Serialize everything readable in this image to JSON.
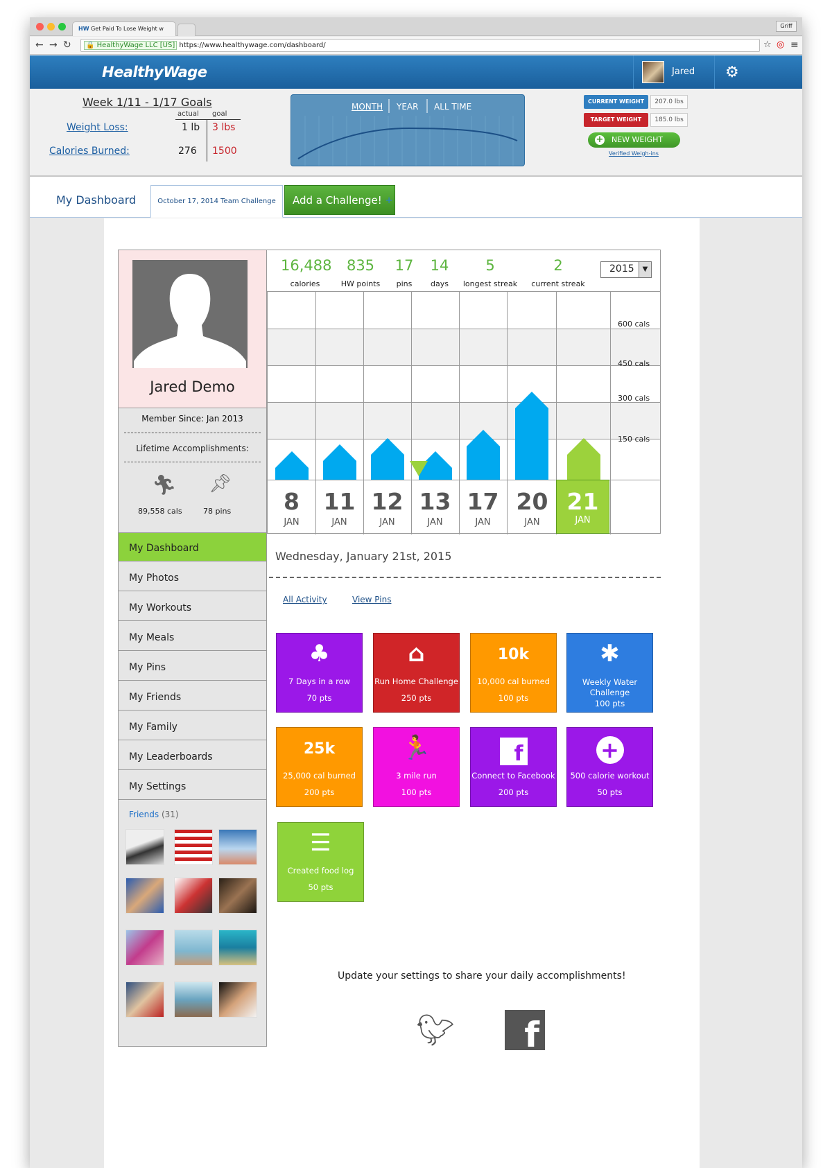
{
  "browser": {
    "tab_title": "Get Paid To Lose Weight w",
    "profile_button": "Griff",
    "ssl_label": "HealthyWage LLC [US]",
    "url": "https://www.healthywage.com/dashboard/"
  },
  "header": {
    "logo": "HealthyWage",
    "username": "Jared"
  },
  "goals": {
    "week_title": "Week 1/11 - 1/17 Goals",
    "col_actual": "actual",
    "col_goal": "goal",
    "rows": [
      {
        "label": "Weight Loss:",
        "actual": "1 lb",
        "goal": "3 lbs"
      },
      {
        "label": "Calories Burned:",
        "actual": "276",
        "goal": "1500"
      }
    ],
    "chart_tabs": [
      "MONTH",
      "YEAR",
      "ALL TIME"
    ],
    "current_weight_label": "CURRENT WEIGHT",
    "current_weight_value": "207.0 lbs",
    "target_weight_label": "TARGET WEIGHT",
    "target_weight_value": "185.0 lbs",
    "new_weight_button": "NEW WEIGHT",
    "verified_link": "Verified Weigh-ins"
  },
  "tabs": {
    "my_dashboard": "My Dashboard",
    "team_challenge": "October 17, 2014 Team Challenge",
    "add_challenge": "Add a Challenge!",
    "add_plus": "+"
  },
  "profile": {
    "name": "Jared Demo",
    "member_since_label": "Member Since:",
    "member_since_value": "Jan 2013",
    "lifetime_label": "Lifetime Accomplishments:",
    "lifetime_cals": "89,558 cals",
    "lifetime_pins": "78 pins"
  },
  "sidebar": {
    "items": [
      {
        "label": "My Dashboard",
        "active": true
      },
      {
        "label": "My Photos"
      },
      {
        "label": "My Workouts"
      },
      {
        "label": "My Meals"
      },
      {
        "label": "My Pins"
      },
      {
        "label": "My Friends"
      },
      {
        "label": "My Family"
      },
      {
        "label": "My Leaderboards"
      },
      {
        "label": "My Settings"
      }
    ],
    "friends_label": "Friends",
    "friends_count": "(31)"
  },
  "stats": [
    {
      "value": "16,488",
      "label": "calories"
    },
    {
      "value": "835",
      "label": "HW points"
    },
    {
      "value": "17",
      "label": "pins"
    },
    {
      "value": "14",
      "label": "days"
    },
    {
      "value": "5",
      "label": "longest streak"
    },
    {
      "value": "2",
      "label": "current streak"
    }
  ],
  "year_select": "2015",
  "chart_data": {
    "type": "bar",
    "categories": [
      "8 JAN",
      "11 JAN",
      "12 JAN",
      "13 JAN",
      "17 JAN",
      "20 JAN",
      "21 JAN"
    ],
    "days": [
      "8",
      "11",
      "12",
      "13",
      "17",
      "20",
      "21"
    ],
    "month": "JAN",
    "values": [
      115,
      145,
      170,
      115,
      205,
      360,
      170
    ],
    "y_ticks": [
      "600 cals",
      "450 cals",
      "300 cals",
      "150 cals"
    ],
    "selected_index": 6,
    "colors": {
      "bar": "#00a9ef",
      "selected": "#9cd23c"
    }
  },
  "detail": {
    "date": "Wednesday, January 21st, 2015",
    "filter_all": "All Activity",
    "filter_pins": "View Pins"
  },
  "pins": [
    {
      "icon": "♣",
      "icon_name": "club-icon",
      "title": "7 Days in a row",
      "pts": "70 pts",
      "color": "#9b18e8"
    },
    {
      "icon": "⌂",
      "icon_name": "house-icon",
      "title": "Run Home Challenge",
      "pts": "250 pts",
      "color": "#d02528"
    },
    {
      "icon": "10k",
      "icon_name": "10k-icon",
      "title": "10,000 cal burned",
      "pts": "100 pts",
      "color": "#ff9900"
    },
    {
      "icon": "✱",
      "icon_name": "snowflake-icon",
      "title": "Weekly Water Challenge",
      "pts": "100 pts",
      "color": "#2e7de0"
    },
    {
      "icon": "25k",
      "icon_name": "25k-icon",
      "title": "25,000 cal burned",
      "pts": "200 pts",
      "color": "#ff9900"
    },
    {
      "icon": "🏃",
      "icon_name": "runner-icon",
      "title": "3 mile run",
      "pts": "100 pts",
      "color": "#f211e0"
    },
    {
      "icon": "f",
      "icon_name": "facebook-icon",
      "title": "Connect to Facebook",
      "pts": "200 pts",
      "color": "#9b18e8"
    },
    {
      "icon": "+",
      "icon_name": "plus-circle-icon",
      "title": "500 calorie workout",
      "pts": "50 pts",
      "color": "#9b18e8"
    },
    {
      "icon": "☰",
      "icon_name": "list-icon",
      "title": "Created food log",
      "pts": "50 pts",
      "color": "#8fd33a"
    }
  ],
  "share": {
    "text": "Update your settings to share your daily accomplishments!"
  }
}
